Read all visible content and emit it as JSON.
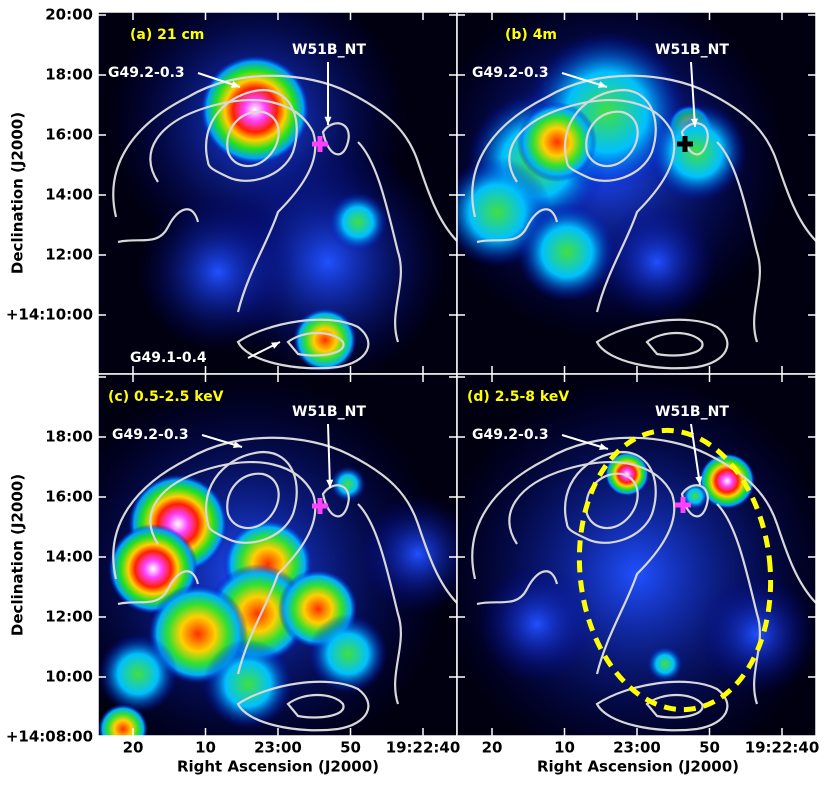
{
  "panels": [
    {
      "label": "(a) 21 cm",
      "annotations": [
        "G49.2-0.3",
        "W51B_NT",
        "G49.1-0.4"
      ]
    },
    {
      "label": "(b) 4m",
      "annotations": [
        "G49.2-0.3",
        "W51B_NT"
      ]
    },
    {
      "label": "(c) 0.5-2.5 keV",
      "annotations": [
        "G49.2-0.3",
        "W51B_NT"
      ]
    },
    {
      "label": "(d) 2.5-8 keV",
      "annotations": [
        "G49.2-0.3",
        "W51B_NT"
      ]
    }
  ],
  "y_axis": {
    "label": "Declination (J2000)",
    "ticks_top": [
      "20:00",
      "18:00",
      "16:00",
      "14:00",
      "12:00",
      "+14:10:00"
    ],
    "ticks_bottom": [
      "18:00",
      "16:00",
      "14:00",
      "12:00",
      "10:00",
      "+14:08:00"
    ]
  },
  "x_axis": {
    "label": "Right Ascension (J2000)",
    "ticks": [
      "20",
      "10",
      "23:00",
      "50",
      "19:22:40"
    ]
  }
}
